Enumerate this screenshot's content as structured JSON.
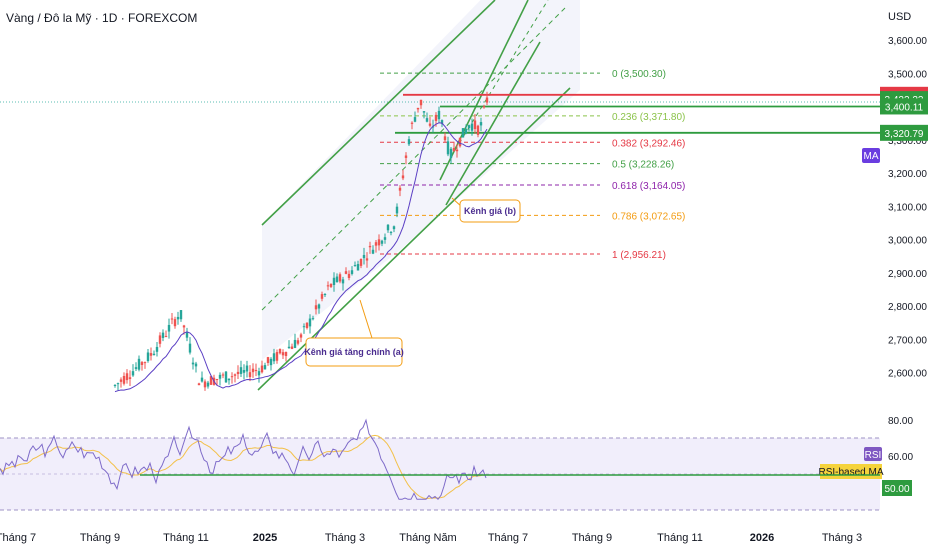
{
  "header": {
    "title": "Vàng / Đô la Mỹ · 1D · FOREXCOM",
    "currency": "USD"
  },
  "colors": {
    "up": "#26a69a",
    "down": "#ef5350",
    "trend": "#43a047",
    "ma": "#5b3fc4",
    "rsi": "#7e6bc9",
    "rsi_ma": "#f3c14a",
    "resistance": "#e53945",
    "support": "#2e9b3f"
  },
  "icons": [
    "callout-a",
    "callout-b"
  ],
  "price_axis": {
    "ticks": [
      "3,600.00",
      "3,500.00",
      "3,400.00",
      "3,300.00",
      "3,200.00",
      "3,100.00",
      "3,000.00",
      "2,900.00",
      "2,800.00",
      "2,700.00",
      "2,600.00"
    ]
  },
  "rsi_axis": {
    "ticks": [
      "80.00",
      "60.00"
    ]
  },
  "time_axis": {
    "ticks": [
      "Tháng 7",
      "Tháng 9",
      "Tháng 11",
      "2025",
      "Tháng 3",
      "Tháng Năm",
      "Tháng 7",
      "Tháng 9",
      "Tháng 11",
      "2026",
      "Tháng 3"
    ]
  },
  "fib_levels": [
    {
      "label": "0 (3,500.30)",
      "value": 3500.3,
      "color": "#43a047"
    },
    {
      "label": "0.236 (3,371.80)",
      "value": 3371.8,
      "color": "#8bc34a"
    },
    {
      "label": "0.382 (3,292.46)",
      "value": 3292.46,
      "color": "#e53945"
    },
    {
      "label": "0.5 (3,228.26)",
      "value": 3228.26,
      "color": "#43a047"
    },
    {
      "label": "0.618 (3,164.05)",
      "value": 3164.05,
      "color": "#8e24aa"
    },
    {
      "label": "0.786 (3,072.65)",
      "value": 3072.65,
      "color": "#f39c12"
    },
    {
      "label": "1 (2,956.21)",
      "value": 2956.21,
      "color": "#e53945"
    }
  ],
  "price_tags": [
    {
      "label": "3,435.13",
      "value": 3435.13,
      "color": "#e53945"
    },
    {
      "label": "3,422.22",
      "value": 3422.22,
      "color": "#2e9b3f"
    },
    {
      "label": "3,400.11",
      "value": 3400.11,
      "color": "#2e9b3f"
    },
    {
      "label": "3,320.79",
      "value": 3320.79,
      "color": "#2e9b3f"
    }
  ],
  "ma_tag": "MA",
  "rsi_tags": {
    "rsi": "RSI",
    "rsi_ma": "RSI-based MA",
    "level": "50.00"
  },
  "annotations": {
    "channel_a": "Kênh giá tăng chính (a)",
    "channel_b": "Kênh giá (b)"
  },
  "chart_data": {
    "type": "candlestick",
    "title": "Vàng / Đô la Mỹ · 1D · FOREXCOM",
    "ylabel": "USD",
    "ylim": [
      2540,
      3660
    ],
    "rsi_ylim": [
      20,
      90
    ],
    "x_ticks": [
      "Tháng 7",
      "Tháng 9",
      "Tháng 11",
      "2025",
      "Tháng 3",
      "Tháng Năm",
      "Tháng 7",
      "Tháng 9",
      "Tháng 11",
      "2026",
      "Tháng 3"
    ],
    "last_price": 3422.22,
    "series": [
      {
        "name": "MA"
      },
      {
        "name": "RSI"
      },
      {
        "name": "RSI-based MA"
      }
    ],
    "fib_levels": [
      3500.3,
      3371.8,
      3292.46,
      3228.26,
      3164.05,
      3072.65,
      2956.21
    ],
    "horizontal_levels": [
      3435.13,
      3400.11,
      3320.79
    ],
    "rsi_levels": [
      50.0
    ]
  }
}
